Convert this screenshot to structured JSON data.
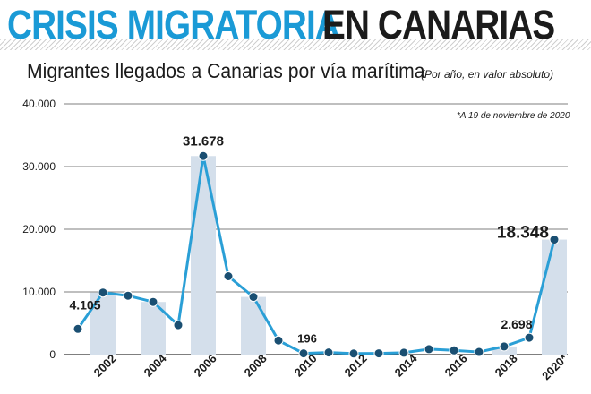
{
  "header": {
    "title_part1": "CRISIS MIGRATORIA",
    "title_part2": "EN CANARIAS",
    "subtitle": "Migrantes llegados a Canarias por vía marítima",
    "subtitle_note": "(Por año, en valor absoluto)",
    "footnote": "*A 19 de noviembre de 2020"
  },
  "colors": {
    "accent": "#1a9ad6",
    "line": "#2a9fd6",
    "marker": "#1a4f72",
    "bar": "#d4dfeb",
    "title_dark": "#1b1b1b",
    "grid": "#555555"
  },
  "chart_data": {
    "type": "line",
    "x": [
      2001,
      2002,
      2003,
      2004,
      2005,
      2006,
      2007,
      2008,
      2009,
      2010,
      2011,
      2012,
      2013,
      2014,
      2015,
      2016,
      2017,
      2018,
      2019,
      2020
    ],
    "values": [
      4105,
      9900,
      9400,
      8400,
      4700,
      31678,
      12500,
      9200,
      2250,
      196,
      340,
      170,
      200,
      300,
      870,
      670,
      420,
      1300,
      2698,
      18348
    ],
    "bar_years": [
      2002,
      2004,
      2006,
      2008,
      2018,
      2020
    ],
    "x_tick_labels": [
      "2002",
      "2004",
      "2006",
      "2008",
      "2010",
      "2012",
      "2014",
      "2016",
      "2018",
      "2020*"
    ],
    "x_tick_years": [
      2002,
      2004,
      2006,
      2008,
      2010,
      2012,
      2014,
      2016,
      2018,
      2020
    ],
    "y_ticks": [
      0,
      10000,
      20000,
      30000,
      40000
    ],
    "y_tick_labels": [
      "0",
      "10.000",
      "20.000",
      "30.000",
      "40.000"
    ],
    "ylim": [
      0,
      40000
    ],
    "xlim": [
      2001,
      2020
    ],
    "grid": true,
    "data_labels": [
      {
        "year": 2001,
        "text": "4.105"
      },
      {
        "year": 2006,
        "text": "31.678"
      },
      {
        "year": 2010,
        "text": "196"
      },
      {
        "year": 2019,
        "text": "2.698"
      },
      {
        "year": 2020,
        "text": "18.348"
      }
    ]
  }
}
